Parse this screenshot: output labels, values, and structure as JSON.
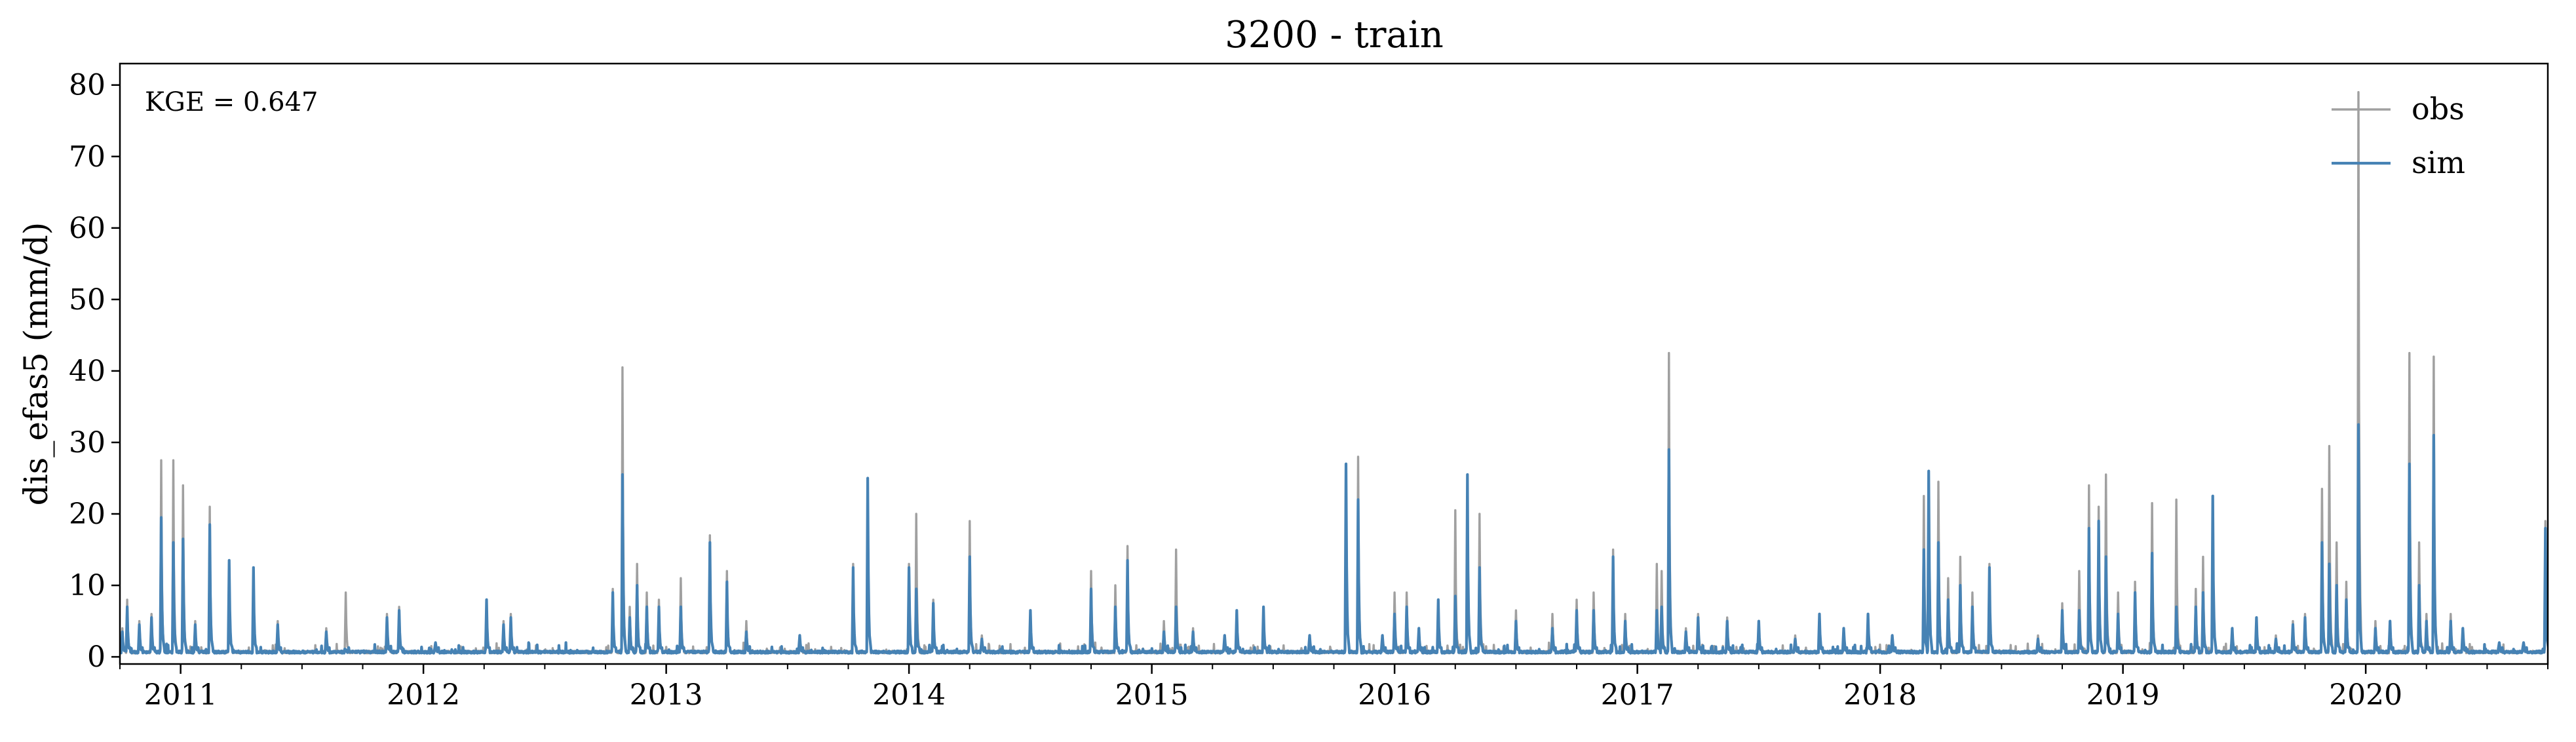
{
  "chart_data": {
    "type": "line",
    "title": "3200 - train",
    "xlabel": "",
    "ylabel": "dis_efas5 (mm/d)",
    "annotation": "KGE = 0.647",
    "legend_position": "top-right",
    "grid": false,
    "xlim": [
      2010.75,
      2020.75
    ],
    "ylim": [
      -1.0,
      83.0
    ],
    "x_ticks": [
      {
        "value": 2011.0,
        "label": "2011"
      },
      {
        "value": 2012.0,
        "label": "2012"
      },
      {
        "value": 2013.0,
        "label": "2013"
      },
      {
        "value": 2014.0,
        "label": "2014"
      },
      {
        "value": 2015.0,
        "label": "2015"
      },
      {
        "value": 2016.0,
        "label": "2016"
      },
      {
        "value": 2017.0,
        "label": "2017"
      },
      {
        "value": 2018.0,
        "label": "2018"
      },
      {
        "value": 2019.0,
        "label": "2019"
      },
      {
        "value": 2020.0,
        "label": "2020"
      }
    ],
    "y_ticks": [
      0,
      10,
      20,
      30,
      40,
      50,
      60,
      70,
      80
    ],
    "base_level": 0.5,
    "series": [
      {
        "name": "obs",
        "color": "#a0a0a0",
        "peaks": [
          [
            2010.76,
            4
          ],
          [
            2010.78,
            8
          ],
          [
            2010.83,
            5
          ],
          [
            2010.88,
            6
          ],
          [
            2010.92,
            27.5
          ],
          [
            2010.97,
            27.5
          ],
          [
            2011.01,
            24
          ],
          [
            2011.06,
            5
          ],
          [
            2011.12,
            21
          ],
          [
            2011.2,
            13
          ],
          [
            2011.3,
            12
          ],
          [
            2011.4,
            5
          ],
          [
            2011.6,
            4
          ],
          [
            2011.68,
            9
          ],
          [
            2011.85,
            6
          ],
          [
            2011.9,
            7
          ],
          [
            2012.05,
            2
          ],
          [
            2012.26,
            8
          ],
          [
            2012.33,
            5
          ],
          [
            2012.36,
            6
          ],
          [
            2012.78,
            9.5
          ],
          [
            2012.82,
            40.5
          ],
          [
            2012.85,
            7
          ],
          [
            2012.88,
            13
          ],
          [
            2012.92,
            9
          ],
          [
            2012.97,
            8
          ],
          [
            2013.06,
            11
          ],
          [
            2013.18,
            17
          ],
          [
            2013.25,
            12
          ],
          [
            2013.33,
            5
          ],
          [
            2013.55,
            3
          ],
          [
            2013.77,
            13
          ],
          [
            2013.83,
            25
          ],
          [
            2014.0,
            13
          ],
          [
            2014.03,
            20
          ],
          [
            2014.1,
            8
          ],
          [
            2014.25,
            19
          ],
          [
            2014.3,
            3
          ],
          [
            2014.5,
            6.5
          ],
          [
            2014.75,
            12
          ],
          [
            2014.85,
            10
          ],
          [
            2014.9,
            15.5
          ],
          [
            2015.05,
            5
          ],
          [
            2015.1,
            15
          ],
          [
            2015.17,
            4
          ],
          [
            2015.3,
            3
          ],
          [
            2015.35,
            6.5
          ],
          [
            2015.46,
            7
          ],
          [
            2015.65,
            3
          ],
          [
            2015.8,
            27
          ],
          [
            2015.85,
            28
          ],
          [
            2015.95,
            3
          ],
          [
            2016.0,
            9
          ],
          [
            2016.05,
            9
          ],
          [
            2016.1,
            4
          ],
          [
            2016.18,
            8
          ],
          [
            2016.25,
            20.5
          ],
          [
            2016.3,
            25
          ],
          [
            2016.35,
            20
          ],
          [
            2016.5,
            6.5
          ],
          [
            2016.65,
            6
          ],
          [
            2016.75,
            8
          ],
          [
            2016.82,
            9
          ],
          [
            2016.9,
            15
          ],
          [
            2016.95,
            6
          ],
          [
            2017.08,
            13
          ],
          [
            2017.1,
            12
          ],
          [
            2017.13,
            42.5
          ],
          [
            2017.2,
            4
          ],
          [
            2017.25,
            6
          ],
          [
            2017.37,
            5.5
          ],
          [
            2017.5,
            5
          ],
          [
            2017.65,
            3
          ],
          [
            2017.75,
            6
          ],
          [
            2017.85,
            4
          ],
          [
            2017.95,
            6
          ],
          [
            2018.05,
            3
          ],
          [
            2018.18,
            22.5
          ],
          [
            2018.2,
            26
          ],
          [
            2018.24,
            24.5
          ],
          [
            2018.28,
            11
          ],
          [
            2018.33,
            14
          ],
          [
            2018.38,
            9
          ],
          [
            2018.45,
            13
          ],
          [
            2018.65,
            3
          ],
          [
            2018.75,
            7.5
          ],
          [
            2018.82,
            12
          ],
          [
            2018.86,
            24
          ],
          [
            2018.9,
            21
          ],
          [
            2018.93,
            25.5
          ],
          [
            2018.98,
            9
          ],
          [
            2019.05,
            10.5
          ],
          [
            2019.12,
            21.5
          ],
          [
            2019.22,
            22
          ],
          [
            2019.3,
            9.5
          ],
          [
            2019.33,
            14
          ],
          [
            2019.37,
            22.5
          ],
          [
            2019.45,
            4
          ],
          [
            2019.55,
            5.5
          ],
          [
            2019.63,
            3
          ],
          [
            2019.7,
            5
          ],
          [
            2019.75,
            6
          ],
          [
            2019.82,
            23.5
          ],
          [
            2019.85,
            29.5
          ],
          [
            2019.88,
            16
          ],
          [
            2019.92,
            10.5
          ],
          [
            2019.97,
            79
          ],
          [
            2020.04,
            5
          ],
          [
            2020.1,
            5
          ],
          [
            2020.18,
            42.5
          ],
          [
            2020.22,
            16
          ],
          [
            2020.25,
            6
          ],
          [
            2020.28,
            42
          ],
          [
            2020.35,
            6
          ],
          [
            2020.4,
            4
          ],
          [
            2020.55,
            2
          ],
          [
            2020.65,
            2
          ],
          [
            2020.74,
            19
          ]
        ]
      },
      {
        "name": "sim",
        "color": "#4682b4",
        "peaks": [
          [
            2010.76,
            3.5
          ],
          [
            2010.78,
            7
          ],
          [
            2010.83,
            4.5
          ],
          [
            2010.88,
            5.5
          ],
          [
            2010.92,
            19.5
          ],
          [
            2010.97,
            16
          ],
          [
            2011.01,
            16.5
          ],
          [
            2011.06,
            4.5
          ],
          [
            2011.12,
            18.5
          ],
          [
            2011.2,
            13.5
          ],
          [
            2011.3,
            12.5
          ],
          [
            2011.4,
            4.5
          ],
          [
            2011.6,
            3.5
          ],
          [
            2011.68,
            1
          ],
          [
            2011.85,
            5.5
          ],
          [
            2011.9,
            6.5
          ],
          [
            2012.05,
            2
          ],
          [
            2012.26,
            8
          ],
          [
            2012.33,
            4.5
          ],
          [
            2012.36,
            5.5
          ],
          [
            2012.78,
            9
          ],
          [
            2012.82,
            25.5
          ],
          [
            2012.85,
            5.5
          ],
          [
            2012.88,
            10
          ],
          [
            2012.92,
            7
          ],
          [
            2012.97,
            7
          ],
          [
            2013.06,
            7
          ],
          [
            2013.18,
            16
          ],
          [
            2013.25,
            10.5
          ],
          [
            2013.33,
            3.5
          ],
          [
            2013.55,
            3
          ],
          [
            2013.77,
            12.5
          ],
          [
            2013.83,
            25
          ],
          [
            2014.0,
            12.5
          ],
          [
            2014.03,
            9.5
          ],
          [
            2014.1,
            7.5
          ],
          [
            2014.25,
            14
          ],
          [
            2014.3,
            2.5
          ],
          [
            2014.5,
            6.5
          ],
          [
            2014.75,
            9.5
          ],
          [
            2014.85,
            7
          ],
          [
            2014.9,
            13.5
          ],
          [
            2015.05,
            3.5
          ],
          [
            2015.1,
            7
          ],
          [
            2015.17,
            3.5
          ],
          [
            2015.3,
            3
          ],
          [
            2015.35,
            6.5
          ],
          [
            2015.46,
            7
          ],
          [
            2015.65,
            3
          ],
          [
            2015.8,
            27
          ],
          [
            2015.85,
            22
          ],
          [
            2015.95,
            3
          ],
          [
            2016.0,
            6
          ],
          [
            2016.05,
            7
          ],
          [
            2016.1,
            4
          ],
          [
            2016.18,
            8
          ],
          [
            2016.25,
            8.5
          ],
          [
            2016.3,
            25.5
          ],
          [
            2016.35,
            12.5
          ],
          [
            2016.5,
            5
          ],
          [
            2016.65,
            4
          ],
          [
            2016.75,
            6.5
          ],
          [
            2016.82,
            6.5
          ],
          [
            2016.9,
            14
          ],
          [
            2016.95,
            5
          ],
          [
            2017.08,
            6.5
          ],
          [
            2017.1,
            7
          ],
          [
            2017.13,
            29
          ],
          [
            2017.2,
            3.5
          ],
          [
            2017.25,
            5.5
          ],
          [
            2017.37,
            5
          ],
          [
            2017.5,
            5
          ],
          [
            2017.65,
            2.5
          ],
          [
            2017.75,
            6
          ],
          [
            2017.85,
            4
          ],
          [
            2017.95,
            6
          ],
          [
            2018.05,
            3
          ],
          [
            2018.18,
            15
          ],
          [
            2018.2,
            26
          ],
          [
            2018.24,
            16
          ],
          [
            2018.28,
            8
          ],
          [
            2018.33,
            10
          ],
          [
            2018.38,
            7
          ],
          [
            2018.45,
            12.5
          ],
          [
            2018.65,
            2.5
          ],
          [
            2018.75,
            6.5
          ],
          [
            2018.82,
            6.5
          ],
          [
            2018.86,
            18
          ],
          [
            2018.9,
            19
          ],
          [
            2018.93,
            14
          ],
          [
            2018.98,
            6
          ],
          [
            2019.05,
            9
          ],
          [
            2019.12,
            14.5
          ],
          [
            2019.22,
            7
          ],
          [
            2019.3,
            7
          ],
          [
            2019.33,
            9
          ],
          [
            2019.37,
            22.5
          ],
          [
            2019.45,
            4
          ],
          [
            2019.55,
            5.5
          ],
          [
            2019.63,
            2.5
          ],
          [
            2019.7,
            4.5
          ],
          [
            2019.75,
            5.5
          ],
          [
            2019.82,
            16
          ],
          [
            2019.85,
            13
          ],
          [
            2019.88,
            10
          ],
          [
            2019.92,
            8
          ],
          [
            2019.97,
            32.5
          ],
          [
            2020.04,
            4
          ],
          [
            2020.1,
            5
          ],
          [
            2020.18,
            27
          ],
          [
            2020.22,
            10
          ],
          [
            2020.25,
            5
          ],
          [
            2020.28,
            31
          ],
          [
            2020.35,
            5
          ],
          [
            2020.4,
            4
          ],
          [
            2020.55,
            2
          ],
          [
            2020.65,
            2
          ],
          [
            2020.74,
            18
          ]
        ]
      }
    ]
  }
}
